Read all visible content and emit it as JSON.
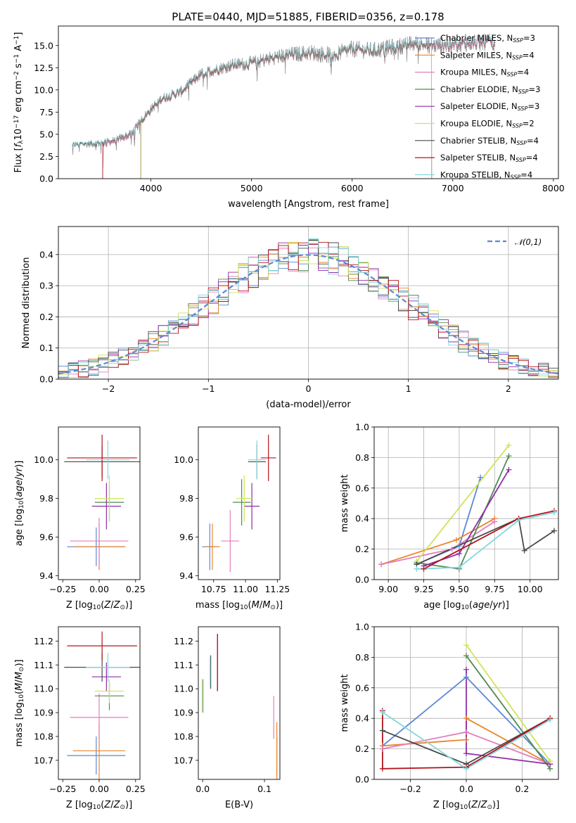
{
  "figure": {
    "title": "PLATE=0440, MJD=51885, FIBERID=0356, z=0.178"
  },
  "colors": {
    "chabrier_miles": "#5b87d6",
    "salpeter_miles": "#e8862a",
    "kroupa_miles": "#e37fbd",
    "chabrier_elodie": "#4e8a55",
    "salpeter_elodie": "#8f2ca8",
    "kroupa_elodie": "#cfe35a",
    "chabrier_stelib": "#4a4a4a",
    "salpeter_stelib": "#b3141a",
    "kroupa_stelib": "#86d6de",
    "data": "#7f7f7f",
    "normal": "#5b87d6",
    "grid": "#b0b0b0"
  },
  "chart_data": [
    {
      "id": "spectrum",
      "type": "line",
      "title": "PLATE=0440, MJD=51885, FIBERID=0356, z=0.178",
      "xlabel": "wavelength [Angstrom, rest frame]",
      "ylabel": "Flux [f_λ 10^-17 erg cm^-2 s^-1 A^-1]",
      "xlim": [
        3080,
        8050
      ],
      "ylim": [
        0,
        17.2
      ],
      "xticks": [
        "4000",
        "5000",
        "6000",
        "7000",
        "8000"
      ],
      "yticks": [
        "0.0",
        "2.5",
        "5.0",
        "7.5",
        "10.0",
        "12.5",
        "15.0"
      ],
      "grid": false,
      "legend_position": "upper right",
      "legend": [
        {
          "label": "Chabrier MILES, N_SSP=3",
          "base": "Chabrier MILES, N",
          "sub": "SSP",
          "tail": "=3",
          "color_key": "chabrier_miles"
        },
        {
          "label": "Salpeter MILES, N_SSP=4",
          "base": "Salpeter MILES, N",
          "sub": "SSP",
          "tail": "=4",
          "color_key": "salpeter_miles"
        },
        {
          "label": "Kroupa MILES, N_SSP=4",
          "base": "Kroupa MILES, N",
          "sub": "SSP",
          "tail": "=4",
          "color_key": "kroupa_miles"
        },
        {
          "label": "Chabrier ELODIE, N_SSP=3",
          "base": "Chabrier ELODIE, N",
          "sub": "SSP",
          "tail": "=3",
          "color_key": "chabrier_elodie"
        },
        {
          "label": "Salpeter ELODIE, N_SSP=3",
          "base": "Salpeter ELODIE, N",
          "sub": "SSP",
          "tail": "=3",
          "color_key": "salpeter_elodie"
        },
        {
          "label": "Kroupa ELODIE, N_SSP=2",
          "base": "Kroupa ELODIE, N",
          "sub": "SSP",
          "tail": "=2",
          "color_key": "kroupa_elodie"
        },
        {
          "label": "Chabrier STELIB, N_SSP=4",
          "base": "Chabrier STELIB, N",
          "sub": "SSP",
          "tail": "=4",
          "color_key": "chabrier_stelib"
        },
        {
          "label": "Salpeter STELIB, N_SSP=4",
          "base": "Salpeter STELIB, N",
          "sub": "SSP",
          "tail": "=4",
          "color_key": "salpeter_stelib"
        },
        {
          "label": "Kroupa STELIB, N_SSP=4",
          "base": "Kroupa STELIB, N",
          "sub": "SSP",
          "tail": "=4",
          "color_key": "kroupa_stelib"
        }
      ],
      "continuum_anchors": {
        "wavelength": [
          3220,
          3500,
          3640,
          3800,
          3950,
          4100,
          4300,
          4500,
          4800,
          5000,
          5200,
          5400,
          5600,
          5800,
          6000,
          6200,
          6400,
          6600,
          6800,
          7000,
          7200,
          7420
        ],
        "flux": [
          3.8,
          4.0,
          4.3,
          5.0,
          7.2,
          9.0,
          9.8,
          11.8,
          12.8,
          13.0,
          13.6,
          14.0,
          14.2,
          13.9,
          14.6,
          14.4,
          14.8,
          15.2,
          15.0,
          15.1,
          15.3,
          15.4
        ]
      },
      "noise_amplitude": 1.0,
      "model_cutoffs": {
        "salpeter_miles": [
          3520,
          7420
        ],
        "salpeter_stelib": [
          3520,
          7420
        ],
        "kroupa_elodie": [
          3900,
          6790
        ],
        "chabrier_elodie": [
          3900,
          6790
        ],
        "salpeter_elodie": [
          3900,
          6790
        ],
        "kroupa_miles": [
          3520,
          7420
        ],
        "chabrier_miles": [
          3520,
          7420
        ]
      }
    },
    {
      "id": "residuals",
      "type": "histogram",
      "xlabel": "(data-model)/error",
      "ylabel": "Normed distribution",
      "xlim": [
        -2.5,
        2.5
      ],
      "ylim": [
        0,
        0.49
      ],
      "xticks": [
        "−2",
        "−1",
        "0",
        "1",
        "2"
      ],
      "yticks": [
        "0.0",
        "0.1",
        "0.2",
        "0.3",
        "0.4"
      ],
      "grid": true,
      "legend_position": "upper right",
      "bin_width": 0.1,
      "normal_curve_label": "𝒩(0,1)",
      "series_keys": [
        "chabrier_miles",
        "salpeter_miles",
        "kroupa_miles",
        "chabrier_elodie",
        "salpeter_elodie",
        "kroupa_elodie",
        "chabrier_stelib",
        "salpeter_stelib",
        "kroupa_stelib"
      ],
      "scatter_amplitude": 0.05
    },
    {
      "id": "age_vs_Z",
      "type": "errorbar",
      "xlabel": "Z [log10(Z/Z⊙)]",
      "ylabel": "age  [log10(age/yr)]",
      "xlim": [
        -0.28,
        0.28
      ],
      "ylim": [
        9.38,
        10.17
      ],
      "xticks": [
        "−0.25",
        "0.00",
        "0.25"
      ],
      "yticks": [
        "9.4",
        "9.6",
        "9.8",
        "10.0"
      ],
      "points": [
        {
          "color_key": "chabrier_miles",
          "x": -0.02,
          "xerr": 0.2,
          "y": 9.55,
          "yerr": 0.1
        },
        {
          "color_key": "salpeter_miles",
          "x": 0.0,
          "xerr": 0.18,
          "y": 9.55,
          "yerr": 0.12
        },
        {
          "color_key": "kroupa_miles",
          "x": 0.0,
          "xerr": 0.2,
          "y": 9.58,
          "yerr": 0.12
        },
        {
          "color_key": "chabrier_elodie",
          "x": 0.07,
          "xerr": 0.1,
          "y": 9.78,
          "yerr": 0.1
        },
        {
          "color_key": "salpeter_elodie",
          "x": 0.05,
          "xerr": 0.1,
          "y": 9.76,
          "yerr": 0.12
        },
        {
          "color_key": "kroupa_elodie",
          "x": 0.07,
          "xerr": 0.1,
          "y": 9.8,
          "yerr": 0.12
        },
        {
          "color_key": "chabrier_stelib",
          "x": 0.02,
          "xerr": 0.26,
          "y": 9.99,
          "yerr": 0.08
        },
        {
          "color_key": "salpeter_stelib",
          "x": 0.02,
          "xerr": 0.24,
          "y": 10.01,
          "yerr": 0.12
        },
        {
          "color_key": "kroupa_stelib",
          "x": 0.06,
          "xerr": 0.15,
          "y": 10.0,
          "yerr": 0.1
        }
      ]
    },
    {
      "id": "age_vs_mass",
      "type": "errorbar",
      "xlabel": "mass [log10(M/M⊙)]",
      "ylabel": "",
      "xlim": [
        10.63,
        11.27
      ],
      "ylim": [
        9.38,
        10.17
      ],
      "xticks": [
        "10.75",
        "11.00",
        "11.25"
      ],
      "yticks": [
        "9.4",
        "9.6",
        "9.8",
        "10.0"
      ],
      "points": [
        {
          "color_key": "chabrier_miles",
          "x": 10.72,
          "xerr": 0.06,
          "y": 9.55,
          "yerr": 0.12
        },
        {
          "color_key": "salpeter_miles",
          "x": 10.74,
          "xerr": 0.06,
          "y": 9.55,
          "yerr": 0.12
        },
        {
          "color_key": "kroupa_miles",
          "x": 10.88,
          "xerr": 0.07,
          "y": 9.58,
          "yerr": 0.16
        },
        {
          "color_key": "chabrier_elodie",
          "x": 10.97,
          "xerr": 0.07,
          "y": 9.78,
          "yerr": 0.12
        },
        {
          "color_key": "salpeter_elodie",
          "x": 11.05,
          "xerr": 0.06,
          "y": 9.76,
          "yerr": 0.12
        },
        {
          "color_key": "kroupa_elodie",
          "x": 10.99,
          "xerr": 0.06,
          "y": 9.8,
          "yerr": 0.12
        },
        {
          "color_key": "chabrier_stelib",
          "x": 11.09,
          "xerr": 0.07,
          "y": 9.99,
          "yerr": 0.09
        },
        {
          "color_key": "salpeter_stelib",
          "x": 11.18,
          "xerr": 0.06,
          "y": 10.01,
          "yerr": 0.12
        },
        {
          "color_key": "kroupa_stelib",
          "x": 11.09,
          "xerr": 0.07,
          "y": 10.0,
          "yerr": 0.1
        }
      ]
    },
    {
      "id": "weight_vs_age",
      "type": "line",
      "xlabel": "age  [log10(age/yr)]",
      "ylabel": "mass weight",
      "xlim": [
        8.9,
        10.2
      ],
      "ylim": [
        0,
        1.0
      ],
      "xticks": [
        "9.00",
        "9.25",
        "9.50",
        "9.75",
        "10.00"
      ],
      "yticks": [
        "0.0",
        "0.2",
        "0.4",
        "0.6",
        "0.8",
        "1.0"
      ],
      "grid": true,
      "series": [
        {
          "color_key": "chabrier_miles",
          "x": [
            9.2,
            9.5,
            9.65
          ],
          "y": [
            0.1,
            0.22,
            0.67
          ]
        },
        {
          "color_key": "salpeter_miles",
          "x": [
            8.95,
            9.48,
            9.75
          ],
          "y": [
            0.1,
            0.26,
            0.4
          ]
        },
        {
          "color_key": "kroupa_miles",
          "x": [
            8.95,
            9.45,
            9.75
          ],
          "y": [
            0.1,
            0.2,
            0.38
          ]
        },
        {
          "color_key": "chabrier_elodie",
          "x": [
            9.2,
            9.5,
            9.85
          ],
          "y": [
            0.11,
            0.07,
            0.81
          ]
        },
        {
          "color_key": "salpeter_elodie",
          "x": [
            9.25,
            9.5,
            9.85
          ],
          "y": [
            0.09,
            0.17,
            0.72
          ]
        },
        {
          "color_key": "kroupa_elodie",
          "x": [
            9.2,
            9.85
          ],
          "y": [
            0.12,
            0.88
          ]
        },
        {
          "color_key": "chabrier_stelib",
          "x": [
            9.2,
            9.92,
            9.96,
            10.17
          ],
          "y": [
            0.1,
            0.4,
            0.19,
            0.32
          ]
        },
        {
          "color_key": "salpeter_stelib",
          "x": [
            9.25,
            9.92,
            10.17
          ],
          "y": [
            0.07,
            0.4,
            0.45
          ]
        },
        {
          "color_key": "kroupa_stelib",
          "x": [
            9.2,
            9.5,
            9.92,
            10.17
          ],
          "y": [
            0.07,
            0.08,
            0.39,
            0.44
          ]
        }
      ]
    },
    {
      "id": "mass_vs_Z",
      "type": "errorbar",
      "xlabel": "Z [log10(Z/Z⊙)]",
      "ylabel": "mass [log10(M/M⊙)]",
      "xlim": [
        -0.28,
        0.28
      ],
      "ylim": [
        10.62,
        11.26
      ],
      "xticks": [
        "−0.25",
        "0.00",
        "0.25"
      ],
      "yticks": [
        "10.7",
        "10.8",
        "10.9",
        "11.0",
        "11.1",
        "11.2"
      ],
      "points": [
        {
          "color_key": "chabrier_miles",
          "x": -0.02,
          "xerr": 0.2,
          "y": 10.72,
          "yerr": 0.08
        },
        {
          "color_key": "salpeter_miles",
          "x": 0.0,
          "xerr": 0.18,
          "y": 10.74,
          "yerr": 0.12
        },
        {
          "color_key": "kroupa_miles",
          "x": 0.0,
          "xerr": 0.2,
          "y": 10.88,
          "yerr": 0.1
        },
        {
          "color_key": "chabrier_elodie",
          "x": 0.07,
          "xerr": 0.1,
          "y": 10.97,
          "yerr": 0.06
        },
        {
          "color_key": "salpeter_elodie",
          "x": 0.05,
          "xerr": 0.1,
          "y": 11.05,
          "yerr": 0.06
        },
        {
          "color_key": "kroupa_elodie",
          "x": 0.07,
          "xerr": 0.1,
          "y": 10.99,
          "yerr": 0.05
        },
        {
          "color_key": "chabrier_stelib",
          "x": 0.02,
          "xerr": 0.26,
          "y": 11.09,
          "yerr": 0.06
        },
        {
          "color_key": "salpeter_stelib",
          "x": 0.02,
          "xerr": 0.24,
          "y": 11.18,
          "yerr": 0.06
        },
        {
          "color_key": "kroupa_stelib",
          "x": 0.06,
          "xerr": 0.15,
          "y": 11.09,
          "yerr": 0.06
        }
      ]
    },
    {
      "id": "mass_vs_EBV",
      "type": "errorbar",
      "xlabel": "E(B-V)",
      "ylabel": "",
      "xlim": [
        -0.007,
        0.125
      ],
      "ylim": [
        10.62,
        11.26
      ],
      "xticks": [
        "0.0",
        "0.1"
      ],
      "yticks": [
        "10.7",
        "10.8",
        "10.9",
        "11.0",
        "11.1",
        "11.2"
      ],
      "points": [
        {
          "color_key": "chabrier_miles",
          "x": 0.12,
          "xerr": 0,
          "y": 10.72,
          "yerr": 0.08
        },
        {
          "color_key": "salpeter_miles",
          "x": 0.12,
          "xerr": 0,
          "y": 10.74,
          "yerr": 0.12
        },
        {
          "color_key": "kroupa_miles",
          "x": 0.115,
          "xerr": 0,
          "y": 10.88,
          "yerr": 0.09
        },
        {
          "color_key": "chabrier_elodie",
          "x": 0.0,
          "xerr": 0,
          "y": 10.97,
          "yerr": 0.07
        },
        {
          "color_key": "salpeter_elodie",
          "x": 0.024,
          "xerr": 0,
          "y": 11.11,
          "yerr": 0.12
        },
        {
          "color_key": "kroupa_elodie",
          "x": 0.001,
          "xerr": 0,
          "y": 10.97,
          "yerr": 0.07
        },
        {
          "color_key": "chabrier_stelib",
          "x": 0.013,
          "xerr": 0,
          "y": 11.07,
          "yerr": 0.07
        },
        {
          "color_key": "salpeter_stelib",
          "x": 0.024,
          "xerr": 0,
          "y": 11.11,
          "yerr": 0.12
        },
        {
          "color_key": "kroupa_stelib",
          "x": 0.012,
          "xerr": 0,
          "y": 11.07,
          "yerr": 0.06
        }
      ]
    },
    {
      "id": "weight_vs_Z",
      "type": "line",
      "xlabel": "Z [log10(Z/Z⊙)]",
      "ylabel": "mass weight",
      "xlim": [
        -0.33,
        0.33
      ],
      "ylim": [
        0,
        1.0
      ],
      "xticks": [
        "−0.2",
        "0.0",
        "0.2"
      ],
      "yticks": [
        "0.0",
        "0.2",
        "0.4",
        "0.6",
        "0.8",
        "1.0"
      ],
      "grid": true,
      "series": [
        {
          "color_key": "chabrier_miles",
          "x": [
            -0.3,
            0.0,
            0.3
          ],
          "y": [
            0.22,
            0.67,
            0.1
          ]
        },
        {
          "color_key": "salpeter_miles",
          "x": [
            -0.3,
            0.0,
            0.0,
            0.3
          ],
          "y": [
            0.22,
            0.26,
            0.4,
            0.1
          ]
        },
        {
          "color_key": "kroupa_miles",
          "x": [
            -0.3,
            0.0,
            0.3
          ],
          "y": [
            0.2,
            0.31,
            0.1
          ]
        },
        {
          "color_key": "chabrier_elodie",
          "x": [
            0.0,
            0.3
          ],
          "y": [
            0.81,
            0.07
          ]
        },
        {
          "color_key": "salpeter_elodie",
          "x": [
            0.0,
            0.0,
            0.3
          ],
          "y": [
            0.72,
            0.17,
            0.1
          ]
        },
        {
          "color_key": "kroupa_elodie",
          "x": [
            0.0,
            0.3
          ],
          "y": [
            0.88,
            0.12
          ]
        },
        {
          "color_key": "chabrier_stelib",
          "x": [
            -0.3,
            0.0,
            0.3
          ],
          "y": [
            0.32,
            0.1,
            0.4
          ]
        },
        {
          "color_key": "salpeter_stelib",
          "x": [
            -0.3,
            -0.3,
            0.0,
            0.3
          ],
          "y": [
            0.45,
            0.07,
            0.08,
            0.4
          ]
        },
        {
          "color_key": "kroupa_stelib",
          "x": [
            -0.3,
            0.0,
            0.3
          ],
          "y": [
            0.44,
            0.07,
            0.39
          ]
        }
      ]
    }
  ]
}
